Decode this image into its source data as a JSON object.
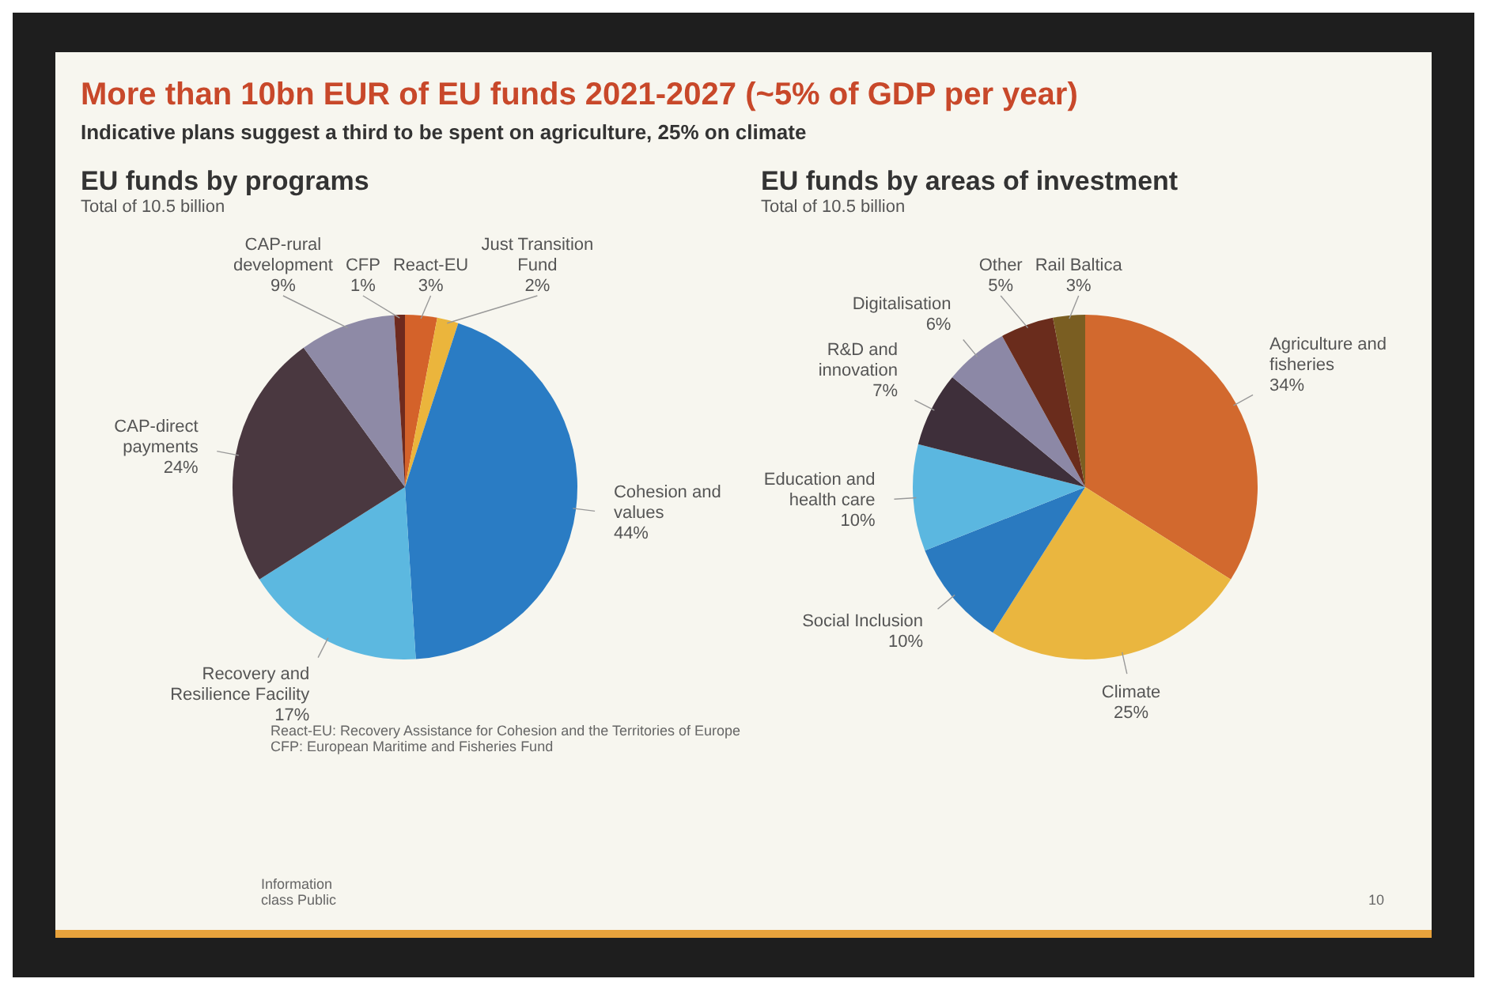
{
  "chart_data": [
    {
      "type": "other",
      "title": "More than 10bn EUR of EU funds 2021-2027 (~5% of GDP per year)",
      "subtitle": "Indicative plans suggest a third to be spent on agriculture, 25% on climate",
      "annotations": [
        "Information class Public",
        "10"
      ]
    },
    {
      "type": "pie",
      "title": "EU funds by programs",
      "subtitle": "Total of 10.5 billion",
      "categories": [
        "React-EU",
        "Just Transition Fund",
        "Cohesion and values",
        "Recovery and Resilience Facility",
        "CAP-direct payments",
        "CAP-rural development",
        "CFP"
      ],
      "values": [
        3,
        2,
        44,
        17,
        24,
        9,
        1
      ],
      "value_labels": [
        "3%",
        "2%",
        "44%",
        "17%",
        "24%",
        "9%",
        "1%"
      ],
      "colors": [
        "#d4622a",
        "#ebb53c",
        "#2a7cc4",
        "#5cb8e0",
        "#4a3840",
        "#8e8aa6",
        "#6e2a1e"
      ],
      "annotations": [
        "React-EU: Recovery Assistance for Cohesion and the Territories of Europe",
        "CFP: European Maritime and Fisheries Fund"
      ]
    },
    {
      "type": "pie",
      "title": "EU funds by areas of investment",
      "subtitle": "Total of 10.5 billion",
      "categories": [
        "Agriculture and fisheries",
        "Climate",
        "Social Inclusion",
        "Education and health care",
        "R&D and innovation",
        "Digitalisation",
        "Other",
        "Rail Baltica"
      ],
      "values": [
        34,
        25,
        10,
        10,
        7,
        6,
        5,
        3
      ],
      "value_labels": [
        "34%",
        "25%",
        "10%",
        "10%",
        "7%",
        "6%",
        "5%",
        "3%"
      ],
      "colors": [
        "#d2692e",
        "#eab63f",
        "#2a7ac0",
        "#5bb7e0",
        "#3e2f3a",
        "#8c88a6",
        "#6a2c1c",
        "#7a5e22"
      ]
    }
  ]
}
